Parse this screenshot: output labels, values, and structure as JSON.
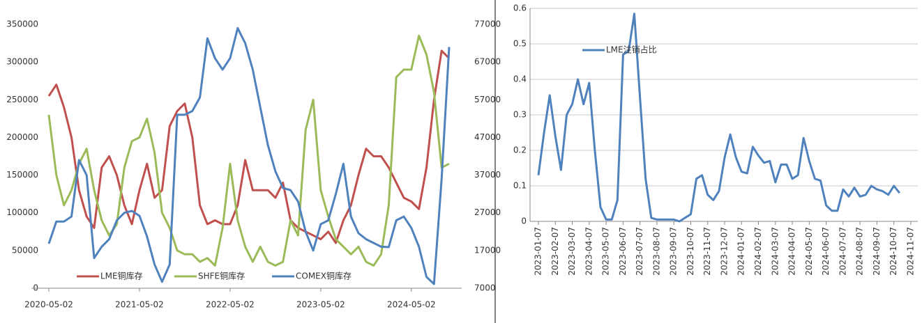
{
  "chart_data": [
    {
      "type": "line",
      "categories": [
        "2020-05-02",
        null,
        null,
        null,
        null,
        null,
        null,
        null,
        null,
        null,
        null,
        null,
        "2021-05-02",
        null,
        null,
        null,
        null,
        null,
        null,
        null,
        null,
        null,
        null,
        null,
        "2022-05-02",
        null,
        null,
        null,
        null,
        null,
        null,
        null,
        null,
        null,
        null,
        null,
        "2023-05-02",
        null,
        null,
        null,
        null,
        null,
        null,
        null,
        null,
        null,
        null,
        null,
        "2024-05-02",
        null,
        null,
        null,
        null,
        null
      ],
      "ylim": [
        0,
        350000
      ],
      "yticks": [
        0,
        50000,
        100000,
        150000,
        200000,
        250000,
        300000,
        350000
      ],
      "y2lim": [
        7000,
        77000
      ],
      "y2ticks": [
        7000,
        17000,
        27000,
        37000,
        47000,
        57000,
        67000,
        77000
      ],
      "grid": false,
      "legend": "bottom",
      "series": [
        {
          "name": "LME铜库存",
          "color": "#c0504d",
          "values": [
            255000,
            270000,
            240000,
            200000,
            130000,
            95000,
            80000,
            160000,
            175000,
            150000,
            110000,
            85000,
            130000,
            165000,
            120000,
            130000,
            215000,
            235000,
            245000,
            200000,
            110000,
            85000,
            90000,
            85000,
            85000,
            110000,
            170000,
            130000,
            130000,
            130000,
            120000,
            140000,
            90000,
            80000,
            75000,
            70000,
            65000,
            75000,
            60000,
            90000,
            110000,
            150000,
            185000,
            175000,
            175000,
            160000,
            140000,
            120000,
            115000,
            105000,
            160000,
            250000,
            315000,
            305000
          ]
        },
        {
          "name": "SHFE铜库存",
          "color": "#9bbb59",
          "values": [
            230000,
            150000,
            110000,
            130000,
            165000,
            185000,
            130000,
            90000,
            70000,
            85000,
            160000,
            195000,
            200000,
            225000,
            180000,
            100000,
            80000,
            50000,
            45000,
            45000,
            35000,
            40000,
            30000,
            80000,
            165000,
            90000,
            55000,
            35000,
            55000,
            35000,
            30000,
            35000,
            90000,
            70000,
            210000,
            250000,
            130000,
            95000,
            65000,
            55000,
            45000,
            55000,
            35000,
            30000,
            45000,
            110000,
            280000,
            290000,
            290000,
            335000,
            310000,
            260000,
            160000,
            165000
          ]
        },
        {
          "name": "COMEX铜库存",
          "color": "#4f81bd",
          "axis": "y2",
          "values": [
            18800,
            24700,
            24700,
            26000,
            41000,
            37000,
            15000,
            18000,
            20000,
            25000,
            27000,
            27500,
            26200,
            20700,
            13300,
            8700,
            13300,
            53000,
            53000,
            54000,
            57600,
            73300,
            68000,
            65000,
            68000,
            76000,
            72000,
            65000,
            55000,
            45000,
            38000,
            33600,
            33000,
            30000,
            22000,
            17000,
            24000,
            25000,
            32000,
            40000,
            26000,
            21600,
            20000,
            19000,
            18000,
            17900,
            25000,
            26000,
            23000,
            18000,
            10000,
            8100,
            36000,
            71000
          ]
        }
      ]
    },
    {
      "type": "line",
      "categories": [
        "2023-01-07",
        null,
        null,
        "2023-02-07",
        null,
        null,
        "2023-03-07",
        null,
        null,
        "2023-04-07",
        null,
        null,
        "2023-05-07",
        null,
        null,
        "2023-06-07",
        null,
        null,
        "2023-07-07",
        null,
        null,
        "2023-08-07",
        null,
        null,
        "2023-09-07",
        null,
        null,
        "2023-10-07",
        null,
        null,
        "2023-11-07",
        null,
        null,
        "2023-12-07",
        null,
        null,
        "2024-01-07",
        null,
        null,
        "2024-02-07",
        null,
        null,
        "2024-03-07",
        null,
        null,
        "2024-04-07",
        null,
        null,
        "2024-05-07",
        null,
        null,
        "2024-06-07",
        null,
        null,
        "2024-07-07",
        null,
        null,
        "2024-08-07",
        null,
        null,
        "2024-09-07",
        null,
        null,
        "2024-10-07",
        null,
        null,
        "2024-11-07"
      ],
      "ylim": [
        0,
        0.6
      ],
      "yticks": [
        0,
        0.1,
        0.2,
        0.3,
        0.4,
        0.5,
        0.6
      ],
      "grid": true,
      "legend": "top-left",
      "series": [
        {
          "name": "LME注销占比",
          "color": "#4f81bd",
          "values": [
            0.13,
            0.25,
            0.355,
            0.24,
            0.145,
            0.3,
            0.33,
            0.4,
            0.33,
            0.39,
            0.2,
            0.04,
            0.005,
            0.005,
            0.06,
            0.47,
            0.48,
            0.585,
            0.35,
            0.12,
            0.01,
            0.005,
            0.005,
            0.005,
            0.005,
            0,
            0.01,
            0.02,
            0.12,
            0.13,
            0.075,
            0.06,
            0.085,
            0.18,
            0.245,
            0.18,
            0.14,
            0.135,
            0.21,
            0.185,
            0.165,
            0.17,
            0.11,
            0.16,
            0.16,
            0.12,
            0.13,
            0.235,
            0.17,
            0.12,
            0.115,
            0.045,
            0.03,
            0.03,
            0.09,
            0.07,
            0.095,
            0.07,
            0.075,
            0.1,
            0.09,
            0.085,
            0.075,
            0.1,
            0.08,
            null,
            null
          ]
        }
      ]
    }
  ]
}
